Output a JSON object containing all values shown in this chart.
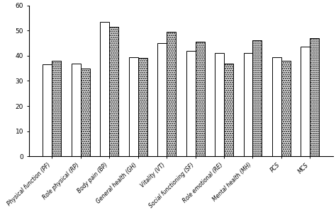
{
  "categories": [
    "Physical function (PF)",
    "Role physical (RP)",
    "Body pain (BP)",
    "General health (GH)",
    "Vitality (VT)",
    "Social functioning (SF)",
    "Role emotional (RE)",
    "Mental health (MH)",
    "PCS",
    "MCS"
  ],
  "series1": [
    36.5,
    37.0,
    53.5,
    39.5,
    45.0,
    42.0,
    41.0,
    41.0,
    39.5,
    43.5
  ],
  "series2": [
    38.0,
    35.0,
    51.5,
    39.0,
    49.5,
    45.5,
    37.0,
    46.0,
    38.0,
    47.0
  ],
  "bar_color1": "#ffffff",
  "bar_color2": "#ffffff",
  "bar_edge_color": "#000000",
  "ylim": [
    0,
    60
  ],
  "yticks": [
    0,
    10,
    20,
    30,
    40,
    50,
    60
  ],
  "bar_width": 0.32,
  "figsize": [
    4.74,
    3.0
  ],
  "dpi": 100,
  "tick_fontsize": 6.5,
  "xlabel_fontsize": 5.5
}
